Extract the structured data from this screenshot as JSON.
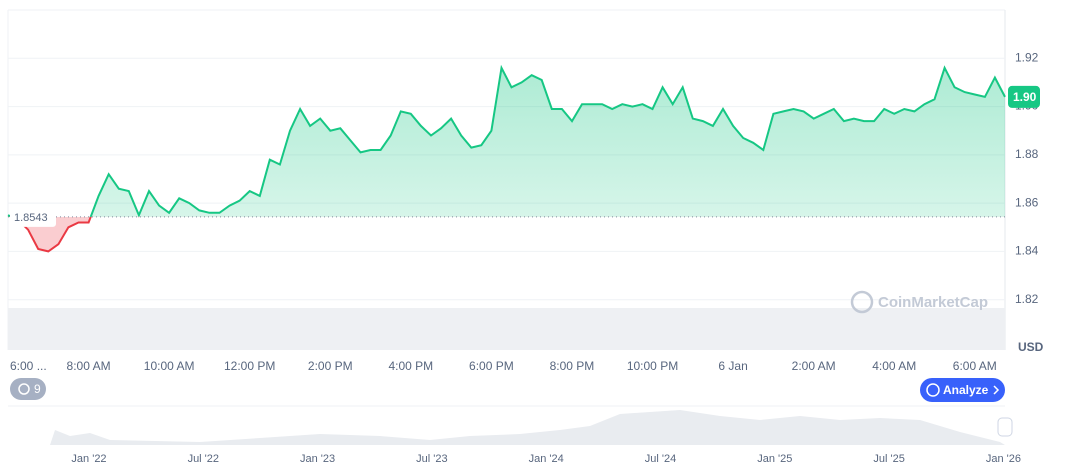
{
  "chart_data": {
    "type": "line",
    "categories": [
      "6:00 ...",
      null,
      null,
      null,
      null,
      null,
      null,
      null,
      "8:00 AM",
      null,
      null,
      null,
      null,
      null,
      null,
      null,
      "10:00 AM",
      null,
      null,
      null,
      null,
      null,
      null,
      null,
      "12:00 PM",
      null,
      null,
      null,
      null,
      null,
      null,
      null,
      "2:00 PM",
      null,
      null,
      null,
      null,
      null,
      null,
      null,
      "4:00 PM",
      null,
      null,
      null,
      null,
      null,
      null,
      null,
      "6:00 PM",
      null,
      null,
      null,
      null,
      null,
      null,
      null,
      "8:00 PM",
      null,
      null,
      null,
      null,
      null,
      null,
      null,
      "10:00 PM",
      null,
      null,
      null,
      null,
      null,
      null,
      null,
      "6 Jan",
      null,
      null,
      null,
      null,
      null,
      null,
      null,
      "2:00 AM",
      null,
      null,
      null,
      null,
      null,
      null,
      null,
      "4:00 AM",
      null,
      null,
      null,
      null,
      null,
      null,
      null,
      "6:00 AM",
      null,
      null,
      null
    ],
    "values": [
      1.855,
      1.853,
      1.849,
      1.841,
      1.84,
      1.843,
      1.85,
      1.852,
      1.852,
      1.863,
      1.872,
      1.866,
      1.865,
      1.855,
      1.865,
      1.859,
      1.856,
      1.862,
      1.86,
      1.857,
      1.856,
      1.856,
      1.859,
      1.861,
      1.865,
      1.863,
      1.878,
      1.876,
      1.89,
      1.899,
      1.892,
      1.895,
      1.89,
      1.891,
      1.886,
      1.881,
      1.882,
      1.882,
      1.888,
      1.898,
      1.897,
      1.892,
      1.888,
      1.891,
      1.895,
      1.888,
      1.883,
      1.884,
      1.89,
      1.916,
      1.908,
      1.91,
      1.913,
      1.911,
      1.899,
      1.899,
      1.894,
      1.901,
      1.901,
      1.901,
      1.899,
      1.901,
      1.9,
      1.901,
      1.899,
      1.908,
      1.901,
      1.908,
      1.895,
      1.894,
      1.892,
      1.899,
      1.892,
      1.887,
      1.885,
      1.882,
      1.897,
      1.898,
      1.899,
      1.898,
      1.895,
      1.897,
      1.899,
      1.894,
      1.895,
      1.894,
      1.894,
      1.899,
      1.897,
      1.899,
      1.898,
      1.901,
      1.903,
      1.916,
      1.908,
      1.906,
      1.905,
      1.904,
      1.912,
      1.904
    ],
    "color": "#16c784",
    "down_color": "#ea3943",
    "baseline": 1.8543,
    "baseline_label": "1.8543",
    "last_label": "1.90",
    "ylim": [
      1.8,
      1.94
    ],
    "yticks": [
      1.82,
      1.84,
      1.86,
      1.88,
      {
        "value": 1.9,
        "label": "1.90"
      },
      1.92
    ],
    "grid": true,
    "y_unit": "USD",
    "watermark": "CoinMarketCap",
    "button": "Analyze",
    "badge": "9",
    "navigator_labels": [
      "Jan '22",
      "Jul '22",
      "Jan '23",
      "Jul '23",
      "Jan '24",
      "Jul '24",
      "Jan '25",
      "Jul '25",
      "Jan '26"
    ]
  }
}
